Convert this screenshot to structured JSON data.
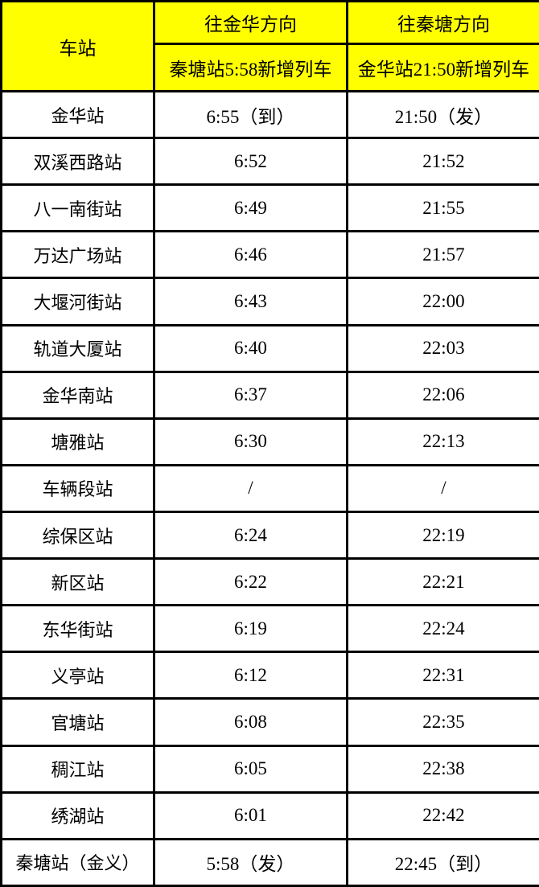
{
  "table": {
    "header": {
      "station_col": "车站",
      "to_jinhua_title": "往金华方向",
      "to_jinhua_subtitle": "秦塘站5:58新增列车",
      "to_qintang_title": "往秦塘方向",
      "to_qintang_subtitle": "金华站21:50新增列车"
    },
    "rows": [
      {
        "station": "金华站",
        "to_jinhua": "6:55（到）",
        "to_qintang": "21:50（发）"
      },
      {
        "station": "双溪西路站",
        "to_jinhua": "6:52",
        "to_qintang": "21:52"
      },
      {
        "station": "八一南街站",
        "to_jinhua": "6:49",
        "to_qintang": "21:55"
      },
      {
        "station": "万达广场站",
        "to_jinhua": "6:46",
        "to_qintang": "21:57"
      },
      {
        "station": "大堰河街站",
        "to_jinhua": "6:43",
        "to_qintang": "22:00"
      },
      {
        "station": "轨道大厦站",
        "to_jinhua": "6:40",
        "to_qintang": "22:03"
      },
      {
        "station": "金华南站",
        "to_jinhua": "6:37",
        "to_qintang": "22:06"
      },
      {
        "station": "塘雅站",
        "to_jinhua": "6:30",
        "to_qintang": "22:13"
      },
      {
        "station": "车辆段站",
        "to_jinhua": "/",
        "to_qintang": "/"
      },
      {
        "station": "综保区站",
        "to_jinhua": "6:24",
        "to_qintang": "22:19"
      },
      {
        "station": "新区站",
        "to_jinhua": "6:22",
        "to_qintang": "22:21"
      },
      {
        "station": "东华街站",
        "to_jinhua": "6:19",
        "to_qintang": "22:24"
      },
      {
        "station": "义亭站",
        "to_jinhua": "6:12",
        "to_qintang": "22:31"
      },
      {
        "station": "官塘站",
        "to_jinhua": "6:08",
        "to_qintang": "22:35"
      },
      {
        "station": "稠江站",
        "to_jinhua": "6:05",
        "to_qintang": "22:38"
      },
      {
        "station": "绣湖站",
        "to_jinhua": "6:01",
        "to_qintang": "22:42"
      },
      {
        "station": "秦塘站（金义）",
        "to_jinhua": "5:58（发）",
        "to_qintang": "22:45（到）"
      }
    ],
    "colors": {
      "header_bg": "#FFFF00",
      "border": "#000000",
      "text": "#000000",
      "body_bg": "#FFFFFF"
    }
  }
}
